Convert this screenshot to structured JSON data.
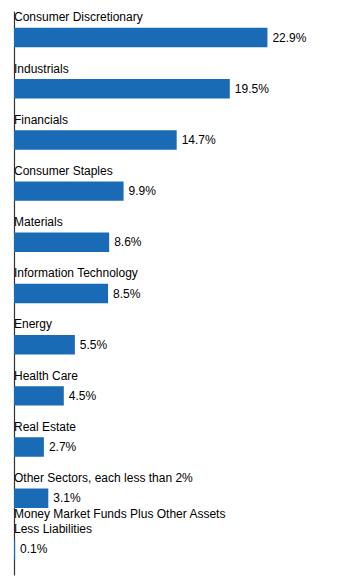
{
  "chart_data": {
    "type": "bar",
    "orientation": "horizontal",
    "categories": [
      "Consumer Discretionary",
      "Industrials",
      "Financials",
      "Consumer Staples",
      "Materials",
      "Information Technology",
      "Energy",
      "Health Care",
      "Real Estate",
      "Other Sectors, each less than 2%",
      "Money Market Funds Plus Other Assets\nLess Liabilities"
    ],
    "values": [
      22.9,
      19.5,
      14.7,
      9.9,
      8.6,
      8.5,
      5.5,
      4.5,
      2.7,
      3.1,
      0.1
    ],
    "value_labels": [
      "22.9%",
      "19.5%",
      "14.7%",
      "9.9%",
      "8.6%",
      "8.5%",
      "5.5%",
      "4.5%",
      "2.7%",
      "3.1%",
      "0.1%"
    ],
    "color": "#1A6BB5",
    "xlim": [
      0,
      30
    ],
    "data_labels": true,
    "tick_labels": false,
    "grid": false
  }
}
